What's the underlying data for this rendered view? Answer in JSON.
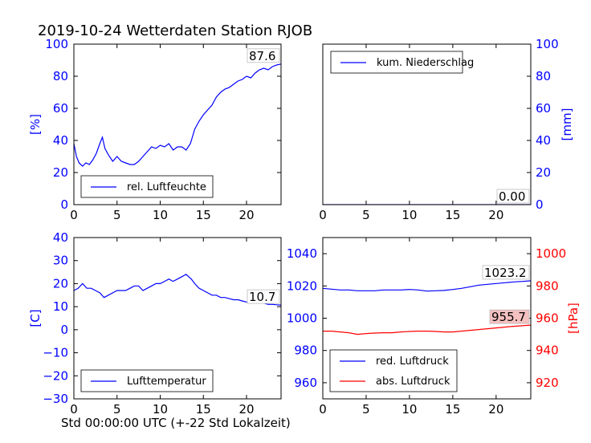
{
  "title": "2019-10-24 Wetterdaten Station RJOB",
  "xlabel": "Std 00:00:00 UTC (+-22 Std Lokalzeit)",
  "colors": {
    "blue": "#0000ff",
    "red": "#ff0000",
    "label_box_red": "#f4c0c0"
  },
  "chart_data": [
    {
      "type": "line",
      "panel": "top-left",
      "ylabel": "[%]",
      "xlim": [
        0,
        24
      ],
      "ylim": [
        0,
        100
      ],
      "xticks": [
        "0",
        "5",
        "10",
        "15",
        "20"
      ],
      "yticks": [
        "0",
        "20",
        "40",
        "60",
        "80",
        "100"
      ],
      "legend": "lower-left",
      "last_value_label": "87.6",
      "series": [
        {
          "name": "rel. Luftfeuchte",
          "color": "#0000ff",
          "x": [
            0,
            0.3,
            0.6,
            1,
            1.4,
            1.8,
            2.2,
            2.6,
            3,
            3.3,
            3.6,
            4,
            4.5,
            5,
            5.5,
            6,
            6.5,
            7,
            7.5,
            8,
            8.5,
            9,
            9.5,
            10,
            10.5,
            11,
            11.5,
            12,
            12.5,
            13,
            13.5,
            14,
            14.5,
            15,
            15.5,
            16,
            16.5,
            17,
            17.5,
            18,
            18.5,
            19,
            19.5,
            20,
            20.5,
            21,
            21.5,
            22,
            22.5,
            23,
            23.5,
            24
          ],
          "y": [
            38,
            30,
            26,
            24,
            26,
            25,
            28,
            32,
            38,
            42,
            35,
            31,
            27,
            30,
            27,
            26,
            25,
            25,
            27,
            30,
            33,
            36,
            35,
            37,
            36,
            38,
            34,
            36,
            36,
            34,
            38,
            47,
            52,
            56,
            59,
            62,
            67,
            70,
            72,
            73,
            75,
            77,
            78,
            80,
            79,
            82,
            84,
            85,
            84,
            86,
            87,
            87.6
          ]
        }
      ]
    },
    {
      "type": "line",
      "panel": "top-right",
      "ylabel": "[mm]",
      "xlim": [
        0,
        24
      ],
      "ylim": [
        0,
        100
      ],
      "xticks": [
        "0",
        "5",
        "10",
        "15",
        "20"
      ],
      "yticks": [
        "0",
        "20",
        "40",
        "60",
        "80",
        "100"
      ],
      "legend": "top-left",
      "last_value_label": "0.00",
      "series": [
        {
          "name": "kum. Niederschlag",
          "color": "#0000ff",
          "x": [
            0,
            24
          ],
          "y": [
            0,
            0
          ]
        }
      ]
    },
    {
      "type": "line",
      "panel": "bottom-left",
      "ylabel": "[C]",
      "xlim": [
        0,
        24
      ],
      "ylim": [
        -30,
        40
      ],
      "xticks": [
        "0",
        "5",
        "10",
        "15",
        "20"
      ],
      "yticks": [
        "−30",
        "−20",
        "−10",
        "0",
        "10",
        "20",
        "30",
        "40"
      ],
      "legend": "lower-left",
      "last_value_label": "10.7",
      "series": [
        {
          "name": "Lufttemperatur",
          "color": "#0000ff",
          "x": [
            0,
            0.5,
            1,
            1.5,
            2,
            2.5,
            3,
            3.5,
            4,
            4.5,
            5,
            5.5,
            6,
            6.5,
            7,
            7.5,
            8,
            8.5,
            9,
            9.5,
            10,
            10.5,
            11,
            11.5,
            12,
            12.5,
            13,
            13.3,
            13.6,
            14,
            14.5,
            15,
            15.5,
            16,
            16.5,
            17,
            17.5,
            18,
            18.5,
            19,
            19.5,
            20,
            20.5,
            21,
            21.5,
            22,
            22.5,
            23,
            23.5,
            24
          ],
          "y": [
            17,
            18,
            20,
            18,
            18,
            17,
            16,
            14,
            15,
            16,
            17,
            17,
            17,
            18,
            19,
            19,
            17,
            18,
            19,
            20,
            20,
            21,
            22,
            21,
            22,
            23,
            24,
            23,
            22,
            20,
            18,
            17,
            16,
            15,
            15,
            14,
            14,
            13.5,
            13,
            13,
            12.5,
            12,
            12.5,
            12,
            12,
            11.5,
            11,
            11,
            10.8,
            10.7
          ]
        }
      ]
    },
    {
      "type": "line",
      "panel": "bottom-right",
      "ylabel_right": "[hPa]",
      "xlim": [
        0,
        24
      ],
      "ylim_left": [
        950,
        1050
      ],
      "ylim_right": [
        910,
        1010
      ],
      "xticks": [
        "0",
        "5",
        "10",
        "15",
        "20"
      ],
      "yticks_left": [
        "960",
        "980",
        "1000",
        "1020",
        "1040"
      ],
      "yticks_right": [
        "920",
        "940",
        "960",
        "980",
        "1000"
      ],
      "legend": "lower-left",
      "last_value_labels": [
        "1023.2",
        "955.7"
      ],
      "series": [
        {
          "name": "red. Luftdruck",
          "color": "#0000ff",
          "axis": "left",
          "x": [
            0,
            1,
            2,
            3,
            4,
            5,
            6,
            7,
            8,
            9,
            10,
            11,
            12,
            13,
            14,
            15,
            16,
            17,
            18,
            19,
            20,
            21,
            22,
            23,
            24
          ],
          "y": [
            1018.5,
            1018,
            1017.5,
            1017.5,
            1017,
            1017,
            1017,
            1017.5,
            1017.5,
            1017.5,
            1017.8,
            1017.5,
            1016.8,
            1017,
            1017.2,
            1017.8,
            1018.5,
            1019.5,
            1020.5,
            1021,
            1021.5,
            1022,
            1022.5,
            1022.8,
            1023.2
          ]
        },
        {
          "name": "abs. Luftdruck",
          "color": "#ff0000",
          "axis": "right",
          "x": [
            0,
            1,
            2,
            3,
            4,
            5,
            6,
            7,
            8,
            9,
            10,
            11,
            12,
            13,
            14,
            15,
            16,
            17,
            18,
            19,
            20,
            21,
            22,
            23,
            24
          ],
          "y": [
            952,
            952,
            951.5,
            951,
            950,
            950.5,
            950.8,
            951,
            951,
            951.5,
            951.8,
            952,
            952,
            951.8,
            951.5,
            951.5,
            952,
            952.5,
            953,
            953.5,
            954,
            954.5,
            955,
            955.3,
            955.7
          ]
        }
      ]
    }
  ]
}
